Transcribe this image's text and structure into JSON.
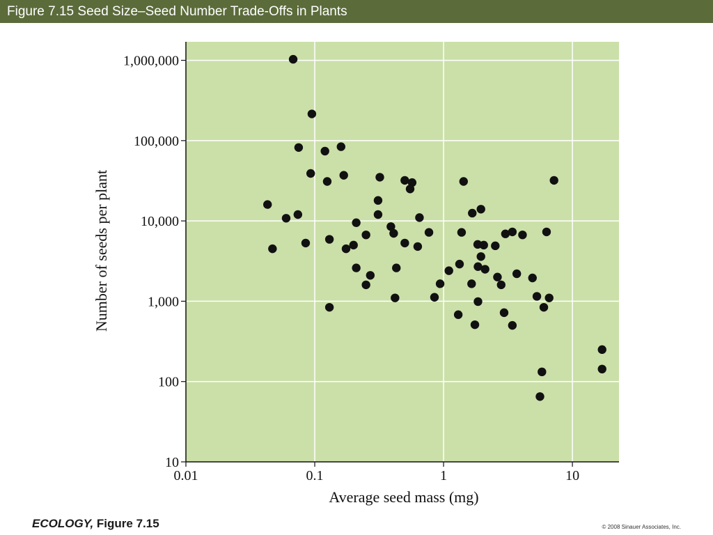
{
  "header": {
    "title": "Figure 7.15  Seed Size–Seed Number Trade-Offs in Plants"
  },
  "footer": {
    "book": "ECOLOGY,",
    "figure": "Figure 7.15",
    "copyright": "© 2008 Sinauer Associates, Inc."
  },
  "colors": {
    "title_bar": "#5b6b3a",
    "plot_background": "#cbe0a9",
    "gridline": "#ffffff",
    "point": "#111111"
  },
  "chart_data": {
    "type": "scatter",
    "title": "",
    "xlabel": "Average seed mass (mg)",
    "ylabel": "Number of seeds per plant",
    "x_scale": "log",
    "y_scale": "log",
    "xlim": [
      0.01,
      23
    ],
    "ylim": [
      10,
      1700000
    ],
    "grid": true,
    "x_ticks": [
      {
        "value": 0.01,
        "label": "0.01"
      },
      {
        "value": 0.1,
        "label": "0.1"
      },
      {
        "value": 1,
        "label": "1"
      },
      {
        "value": 10,
        "label": "10"
      }
    ],
    "y_ticks": [
      {
        "value": 10,
        "label": "10"
      },
      {
        "value": 100,
        "label": "100"
      },
      {
        "value": 1000,
        "label": "1,000"
      },
      {
        "value": 10000,
        "label": "10,000"
      },
      {
        "value": 100000,
        "label": "100,000"
      },
      {
        "value": 1000000,
        "label": "1,000,000"
      }
    ],
    "points": [
      [
        0.068,
        1030000
      ],
      [
        0.095,
        215000
      ],
      [
        0.075,
        82000
      ],
      [
        0.12,
        74000
      ],
      [
        0.16,
        84000
      ],
      [
        0.093,
        39000
      ],
      [
        0.125,
        31000
      ],
      [
        0.168,
        37000
      ],
      [
        0.32,
        35000
      ],
      [
        0.5,
        32000
      ],
      [
        0.57,
        30000
      ],
      [
        0.55,
        25000
      ],
      [
        1.43,
        31000
      ],
      [
        7.2,
        32000
      ],
      [
        0.043,
        16000
      ],
      [
        0.074,
        12000
      ],
      [
        0.06,
        10800
      ],
      [
        0.31,
        18000
      ],
      [
        0.31,
        12000
      ],
      [
        1.67,
        12500
      ],
      [
        1.95,
        14000
      ],
      [
        0.21,
        9500
      ],
      [
        0.39,
        8500
      ],
      [
        0.65,
        11000
      ],
      [
        0.047,
        4500
      ],
      [
        0.085,
        5300
      ],
      [
        0.13,
        5900
      ],
      [
        0.175,
        4500
      ],
      [
        0.2,
        5000
      ],
      [
        0.25,
        6700
      ],
      [
        0.41,
        7000
      ],
      [
        0.5,
        5300
      ],
      [
        0.63,
        4800
      ],
      [
        0.77,
        7200
      ],
      [
        1.38,
        7200
      ],
      [
        1.84,
        5100
      ],
      [
        2.05,
        5000
      ],
      [
        2.52,
        4900
      ],
      [
        3.02,
        6900
      ],
      [
        3.42,
        7300
      ],
      [
        4.1,
        6700
      ],
      [
        6.3,
        7300
      ],
      [
        1.95,
        3600
      ],
      [
        0.21,
        2600
      ],
      [
        0.27,
        2100
      ],
      [
        0.43,
        2600
      ],
      [
        0.25,
        1600
      ],
      [
        0.94,
        1650
      ],
      [
        1.1,
        2400
      ],
      [
        1.33,
        2900
      ],
      [
        1.85,
        2700
      ],
      [
        2.1,
        2500
      ],
      [
        2.62,
        2000
      ],
      [
        3.7,
        2200
      ],
      [
        4.9,
        1950
      ],
      [
        1.65,
        1650
      ],
      [
        2.8,
        1600
      ],
      [
        0.13,
        840
      ],
      [
        0.42,
        1100
      ],
      [
        0.85,
        1120
      ],
      [
        1.3,
        680
      ],
      [
        1.85,
        990
      ],
      [
        1.75,
        510
      ],
      [
        2.95,
        720
      ],
      [
        3.42,
        500
      ],
      [
        5.3,
        1150
      ],
      [
        6.6,
        1100
      ],
      [
        6.0,
        840
      ],
      [
        17.0,
        250
      ],
      [
        17.0,
        143
      ],
      [
        5.8,
        132
      ],
      [
        5.6,
        65
      ]
    ]
  }
}
